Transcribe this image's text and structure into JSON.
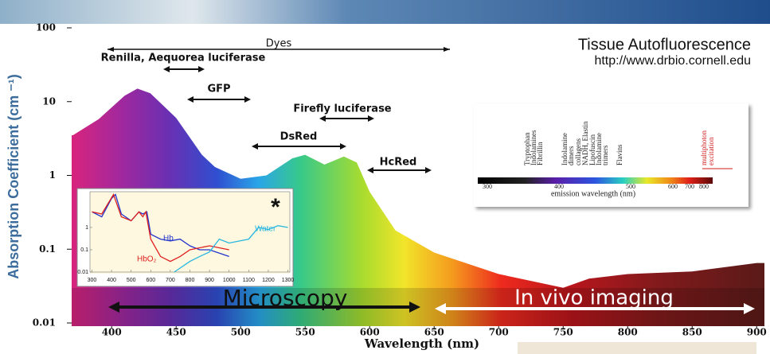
{
  "chart_data": [
    {
      "type": "area",
      "xlabel": "Wavelength (nm)",
      "ylabel": "Absorption Coefficient (cm ⁻¹)",
      "x": [
        370,
        390,
        410,
        420,
        430,
        450,
        470,
        480,
        500,
        520,
        540,
        550,
        565,
        580,
        590,
        600,
        620,
        650,
        700,
        750,
        770,
        800,
        850,
        900
      ],
      "values": [
        3.5,
        5.8,
        12,
        15,
        13,
        6,
        1.9,
        1.3,
        0.9,
        1.0,
        1.7,
        1.9,
        1.4,
        1.8,
        1.5,
        0.6,
        0.18,
        0.09,
        0.046,
        0.03,
        0.04,
        0.046,
        0.05,
        0.065
      ],
      "xlim": [
        369,
        906
      ],
      "ylim": [
        0.01,
        100
      ],
      "log_y": true,
      "xticks": [
        400,
        450,
        500,
        550,
        600,
        650,
        700,
        750,
        800,
        850,
        900
      ],
      "yticks": [
        100,
        10,
        1,
        0.1,
        0.01
      ],
      "annotations": [
        "Dyes",
        "Renilla, Aequorea luciferase",
        "GFP",
        "Firefly luciferase",
        "DsRed",
        "HcRed",
        "Microscopy",
        "In vivo imaging"
      ]
    },
    {
      "type": "line",
      "log_y": true,
      "marker_text": "*",
      "xlim": [
        290,
        1310
      ],
      "ylim": [
        0.01,
        40
      ],
      "xticks": [
        300,
        400,
        500,
        600,
        700,
        800,
        900,
        1000,
        1100,
        1200,
        1300
      ],
      "yticks": [
        0.01,
        0.1,
        1
      ],
      "series": [
        {
          "name": "Hb",
          "color": "#2233cc",
          "x": [
            300,
            350,
            400,
            420,
            450,
            500,
            540,
            560,
            580,
            600,
            650,
            700,
            750,
            800,
            850,
            900,
            1000
          ],
          "values": [
            5,
            3,
            20,
            30,
            4,
            2,
            5,
            4,
            5,
            0.5,
            0.3,
            0.25,
            0.3,
            0.15,
            0.1,
            0.1,
            0.05
          ]
        },
        {
          "name": "HbO₂",
          "color": "#e02020",
          "x": [
            300,
            350,
            410,
            450,
            500,
            540,
            560,
            575,
            600,
            650,
            700,
            750,
            800,
            900,
            1000
          ],
          "values": [
            5,
            4,
            30,
            3,
            2,
            5,
            3,
            5,
            0.3,
            0.05,
            0.03,
            0.05,
            0.1,
            0.15,
            0.1
          ]
        },
        {
          "name": "Water",
          "color": "#29b6e0",
          "x": [
            720,
            800,
            850,
            900,
            950,
            1000,
            1100,
            1150,
            1200,
            1250,
            1300
          ],
          "values": [
            0.01,
            0.03,
            0.05,
            0.08,
            0.3,
            0.2,
            0.3,
            1,
            0.8,
            1.2,
            1
          ]
        }
      ]
    }
  ],
  "autofluorescence_inset": {
    "title": "Tissue Autofluorescence",
    "source": "http://www.drbio.cornell.edu",
    "molecules": [
      "Tryptophan",
      "Indolamines",
      "Fibrillin",
      "Indolamine",
      "dimers",
      "collagens",
      "NADH, Elastin",
      "Lipofuscin",
      "Indolamine",
      "trimers",
      "Flavins"
    ],
    "excitation": [
      "multiphoton",
      "excitation"
    ],
    "axis_labels": [
      "300",
      "400",
      "500",
      "600",
      "700",
      "800"
    ],
    "axis_title": "emission wavelength (nm)"
  }
}
